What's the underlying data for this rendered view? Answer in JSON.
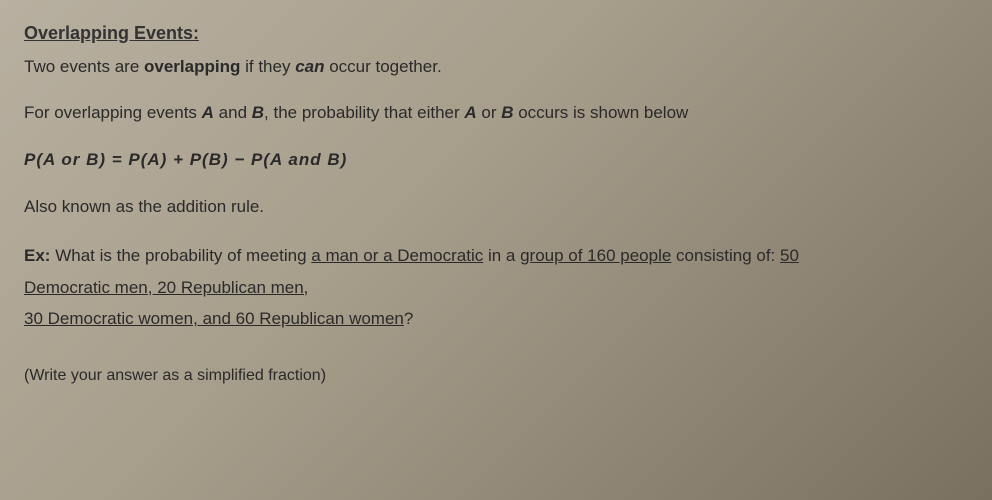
{
  "doc": {
    "heading": "Overlapping Events:",
    "intro_1a": "Two events are ",
    "intro_1b": "overlapping",
    "intro_1c": " if they ",
    "intro_1d": "can",
    "intro_1e": " occur together.",
    "intro_2a": "For overlapping events ",
    "intro_2b": "A",
    "intro_2c": " and ",
    "intro_2d": "B",
    "intro_2e": ", the probability that either ",
    "intro_2f": "A",
    "intro_2g": " or ",
    "intro_2h": "B",
    "intro_2i": " occurs is shown below",
    "formula": "P(A or B)  =  P(A)  +  P(B) −  P(A and B)",
    "also": "Also known as the addition rule.",
    "ex_label": "Ex:",
    "q_a": " What is the probability of meeting ",
    "q_b": "a man or a Democratic",
    "q_c": " in a ",
    "q_d": "group of 160 people",
    "q_e": " consisting of: ",
    "q_f": "50",
    "line2": "Democratic men, 20 Republican men,",
    "line3a": "30 Democratic women, and 60 Republican women",
    "line3b": "?",
    "note": "(Write your answer as a simplified fraction)"
  },
  "style": {
    "bg_from": "#b8b0a0",
    "bg_to": "#7a7060",
    "text_color": "#2a2a2a",
    "font_size_body": 17,
    "font_size_heading": 18,
    "font_family": "Arial"
  }
}
